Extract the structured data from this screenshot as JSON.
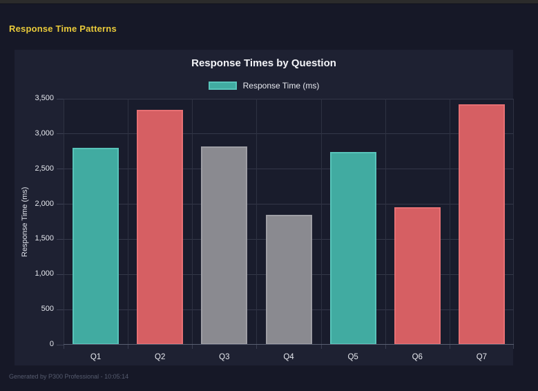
{
  "window": {
    "titlebar_color": "#2b2b2b"
  },
  "header": {
    "title": "Response Time Patterns",
    "title_color": "#e9ca3a"
  },
  "footer": {
    "text": "Generated by P300 Professional - 10:05:14"
  },
  "colors": {
    "page_bg": "#161827",
    "panel_bg": "#1e2132",
    "plot_bg": "#191c2c",
    "grid": "#343849",
    "axis_line": "#5a5f72",
    "tick_text": "#e6e8ee",
    "teal": "#41aba1",
    "teal_border": "#58c4ba",
    "red": "#d65f63",
    "red_border": "#e77074",
    "gray": "#8a8a90",
    "gray_border": "#9e9ea4"
  },
  "chart_data": {
    "type": "bar",
    "title": "Response Times by Question",
    "ylabel": "Response Time (ms)",
    "xlabel": "",
    "categories": [
      "Q1",
      "Q2",
      "Q3",
      "Q4",
      "Q5",
      "Q6",
      "Q7"
    ],
    "series": [
      {
        "name": "Response Time (ms)",
        "values": [
          2800,
          3340,
          2820,
          1850,
          2740,
          1960,
          3420
        ]
      }
    ],
    "bar_fill_colors": [
      "#41aba1",
      "#d65f63",
      "#8a8a90",
      "#8a8a90",
      "#41aba1",
      "#d65f63",
      "#d65f63"
    ],
    "bar_border_colors": [
      "#58c4ba",
      "#e77074",
      "#9e9ea4",
      "#9e9ea4",
      "#58c4ba",
      "#e77074",
      "#e77074"
    ],
    "ylim": [
      0,
      3500
    ],
    "ytick_step": 500,
    "grid": true,
    "legend_position": "top",
    "legend": [
      {
        "label": "Response Time (ms)",
        "fill": "#41aba1",
        "border": "#58c4ba"
      }
    ]
  }
}
